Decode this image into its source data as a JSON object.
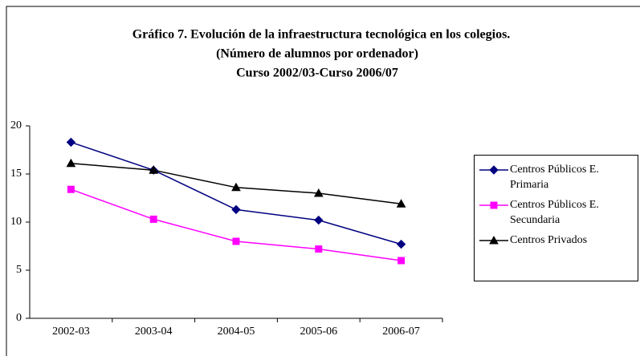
{
  "chart_data": {
    "type": "line",
    "title": [
      "Gráfico 7. Evolución de la infraestructura tecnológica en los colegios.",
      "(Número de alumnos por ordenador)",
      "Curso 2002/03-Curso 2006/07"
    ],
    "categories": [
      "2002-03",
      "2003-04",
      "2004-05",
      "2005-06",
      "2006-07"
    ],
    "series": [
      {
        "name": "Centros Públicos E. Primaria",
        "color": "#000080",
        "marker": "diamond",
        "values": [
          18.3,
          15.4,
          11.3,
          10.2,
          7.7
        ]
      },
      {
        "name": "Centros Públicos E. Secundaria",
        "color": "#ff00ff",
        "marker": "square",
        "values": [
          13.4,
          10.3,
          8.0,
          7.2,
          6.0
        ]
      },
      {
        "name": "Centros Privados",
        "color": "#000000",
        "marker": "triangle",
        "values": [
          16.1,
          15.4,
          13.6,
          13.0,
          11.9
        ]
      }
    ],
    "ylim": [
      0,
      20
    ],
    "yticks": [
      0,
      5,
      10,
      15,
      20
    ],
    "grid": false,
    "legend": "right"
  }
}
